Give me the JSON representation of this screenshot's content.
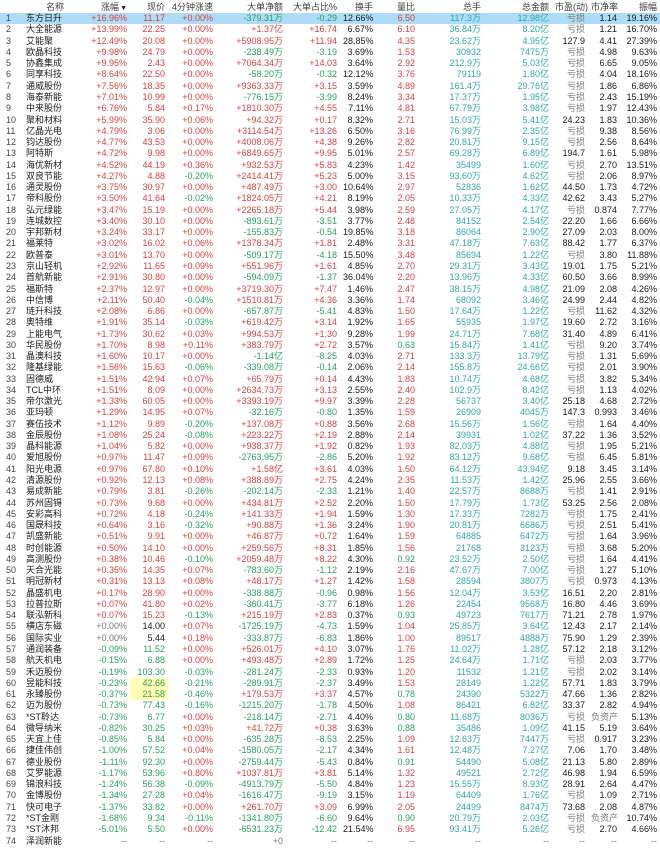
{
  "table": {
    "headers": [
      "名称",
      "涨幅",
      "现价",
      "4分钟涨速",
      "大单净额",
      "大单占比%",
      "换手",
      "量比",
      "总手",
      "总金额",
      "市盈(动)",
      "市净率",
      "振幅"
    ],
    "column_keys": [
      "index",
      "name",
      "change",
      "price",
      "speed",
      "net_amount",
      "net_ratio",
      "turnover",
      "volume_ratio",
      "total_volume",
      "total_amount",
      "pe",
      "pb",
      "amplitude"
    ],
    "sort_column": "涨幅",
    "sort_glyph": "▼",
    "selected_row": 1,
    "yellow_price_rows": [
      60,
      61
    ],
    "rows": [
      [
        "1",
        "东方日升",
        "+16.96%",
        "11.17",
        "+0.00%",
        "-379.31万",
        "-0.29",
        "12.66%",
        "6.50",
        "117.3万",
        "12.98亿",
        "亏损",
        "1.14",
        "19.16%"
      ],
      [
        "2",
        "大全能源",
        "+13.99%",
        "22.25",
        "+0.00%",
        "+1.37亿",
        "+16.74",
        "6.67%",
        "6.10",
        "36.84万",
        "8.20亿",
        "亏损",
        "1.21",
        "16.70%"
      ],
      [
        "3",
        "艾能聚",
        "+12.49%",
        "20.08",
        "+0.00%",
        "+5908.95万",
        "+11.94",
        "28.85%",
        "4.35",
        "23.62万",
        "4.95亿",
        "127.9",
        "4.41",
        "27.39%"
      ],
      [
        "4",
        "欧晶科技",
        "+9.98%",
        "24.79",
        "+0.00%",
        "-238.49万",
        "-3.19",
        "3.69%",
        "1.53",
        "30932",
        "7475万",
        "亏损",
        "4.98",
        "9.63%"
      ],
      [
        "5",
        "协鑫集成",
        "+9.95%",
        "2.43",
        "+0.00%",
        "+7064.34万",
        "+14.03",
        "3.64%",
        "2.92",
        "212.9万",
        "5.03亿",
        "亏损",
        "6.65",
        "9.05%"
      ],
      [
        "6",
        "同享科技",
        "+8.64%",
        "22.50",
        "+0.00%",
        "-58.20万",
        "-0.32",
        "12.12%",
        "3.76",
        "79119",
        "1.80亿",
        "亏损",
        "4.04",
        "18.16%"
      ],
      [
        "7",
        "通威股份",
        "+7.56%",
        "18.35",
        "+0.00%",
        "+9363.33万",
        "+3.15",
        "3.59%",
        "4.89",
        "161.4万",
        "29.76亿",
        "亏损",
        "1.86",
        "6.86%"
      ],
      [
        "8",
        "海泰新能",
        "+7.01%",
        "10.99",
        "+0.00%",
        "-776.15万",
        "-3.99",
        "8.24%",
        "3.34",
        "17.37万",
        "1.95亿",
        "亏损",
        "2.43",
        "15.19%"
      ],
      [
        "9",
        "中来股份",
        "+6.76%",
        "5.84",
        "+0.17%",
        "+1810.30万",
        "+4.55",
        "7.11%",
        "4.81",
        "67.79万",
        "3.98亿",
        "亏损",
        "1.97",
        "12.43%"
      ],
      [
        "10",
        "聚和材料",
        "+5.99%",
        "35.90",
        "+0.06%",
        "+94.32万",
        "+0.17",
        "8.32%",
        "2.71",
        "15.03万",
        "5.41亿",
        "24.23",
        "1.83",
        "10.36%"
      ],
      [
        "11",
        "亿晶光电",
        "+4.79%",
        "3.06",
        "+0.00%",
        "+3114.54万",
        "+13.26",
        "6.50%",
        "3.16",
        "76.99万",
        "2.35亿",
        "亏损",
        "9.38",
        "8.56%"
      ],
      [
        "12",
        "钧达股份",
        "+4.77%",
        "43.53",
        "+0.00%",
        "+4008.06万",
        "+4.38",
        "9.26%",
        "2.82",
        "20.81万",
        "9.15亿",
        "亏损",
        "2.56",
        "8.64%"
      ],
      [
        "13",
        "阿特斯",
        "+4.72%",
        "9.98",
        "+0.00%",
        "+6849.65万",
        "+9.95",
        "5.01%",
        "2.57",
        "69.28万",
        "6.89亿",
        "194.7",
        "1.61",
        "5.98%"
      ],
      [
        "14",
        "海优新材",
        "+4.52%",
        "44.19",
        "+0.36%",
        "+932.53万",
        "+5.83",
        "4.23%",
        "1.42",
        "35499",
        "1.60亿",
        "亏损",
        "2.70",
        "13.51%"
      ],
      [
        "15",
        "双良节能",
        "+4.27%",
        "4.88",
        "-0.20%",
        "+2414.41万",
        "+5.23",
        "5.00%",
        "3.15",
        "93.60万",
        "4.62亿",
        "亏损",
        "2.06",
        "8.97%"
      ],
      [
        "16",
        "通灵股份",
        "+3.75%",
        "30.97",
        "+0.00%",
        "+487.49万",
        "+3.00",
        "10.64%",
        "2.97",
        "52836",
        "1.62亿",
        "44.50",
        "1.73",
        "4.72%"
      ],
      [
        "17",
        "帝科股份",
        "+3.50%",
        "41.64",
        "-0.02%",
        "+1824.05万",
        "+4.21",
        "8.19%",
        "2.05",
        "10.33万",
        "4.33亿",
        "42.62",
        "3.43",
        "5.27%"
      ],
      [
        "18",
        "弘元绿能",
        "+3.47%",
        "15.19",
        "+0.00%",
        "+2265.18万",
        "+5.44",
        "3.98%",
        "2.59",
        "27.05万",
        "4.17亿",
        "亏损",
        "0.874",
        "7.77%"
      ],
      [
        "19",
        "连城数控",
        "+3.40%",
        "30.10",
        "+0.00%",
        "-893.61万",
        "-3.51",
        "3.77%",
        "2.48",
        "84152",
        "2.54亿",
        "22.20",
        "1.66",
        "6.66%"
      ],
      [
        "20",
        "宇邦新材",
        "+3.24%",
        "33.17",
        "+0.00%",
        "-155.83万",
        "-0.54",
        "19.85%",
        "3.18",
        "86064",
        "2.90亿",
        "27.09",
        "2.03",
        "8.00%"
      ],
      [
        "21",
        "福莱特",
        "+3.02%",
        "16.02",
        "+0.06%",
        "+1378.34万",
        "+1.81",
        "2.48%",
        "3.31",
        "47.18万",
        "7.63亿",
        "88.42",
        "1.77",
        "6.37%"
      ],
      [
        "22",
        "欧普泰",
        "+3.01%",
        "13.70",
        "+0.00%",
        "-509.17万",
        "-4.18",
        "15.50%",
        "3.48",
        "85694",
        "1.22亿",
        "亏损",
        "3.80",
        "11.88%"
      ],
      [
        "23",
        "京山轻机",
        "+2.92%",
        "11.65",
        "+0.09%",
        "+551.96万",
        "+1.61",
        "4.85%",
        "2.70",
        "29.31万",
        "3.43亿",
        "19.01",
        "1.75",
        "5.21%"
      ],
      [
        "24",
        "首航新能",
        "+2.91%",
        "30.80",
        "+0.00%",
        "-594.09万",
        "-1.37",
        "36.04%",
        "2.20",
        "13.96万",
        "4.33亿",
        "60.50",
        "3.66",
        "8.99%"
      ],
      [
        "25",
        "福斯特",
        "+2.37%",
        "12.97",
        "+0.00%",
        "+3719.30万",
        "+7.47",
        "1.46%",
        "2.47",
        "38.15万",
        "4.98亿",
        "21.09",
        "2.08",
        "4.26%"
      ],
      [
        "26",
        "中信博",
        "+2.11%",
        "50.40",
        "-0.04%",
        "+1510.81万",
        "+4.36",
        "3.36%",
        "1.74",
        "68092",
        "3.46亿",
        "24.99",
        "2.44",
        "4.82%"
      ],
      [
        "27",
        "琏升科技",
        "+2.08%",
        "6.86",
        "+0.00%",
        "-657.87万",
        "-5.41",
        "4.83%",
        "1.50",
        "17.64万",
        "1.22亿",
        "亏损",
        "11.62",
        "4.32%"
      ],
      [
        "28",
        "奥特维",
        "+1.91%",
        "35.14",
        "-0.03%",
        "+619.42万",
        "+3.14",
        "1.92%",
        "1.65",
        "55935",
        "1.97亿",
        "19.60",
        "2.72",
        "3.16%"
      ],
      [
        "29",
        "上能电气",
        "+1.73%",
        "30.62",
        "+0.03%",
        "+994.53万",
        "+1.30",
        "9.28%",
        "1.99",
        "24.71万",
        "7.68亿",
        "31.40",
        "4.89",
        "6.41%"
      ],
      [
        "30",
        "华民股份",
        "+1.70%",
        "8.98",
        "+0.11%",
        "+383.79万",
        "+2.72",
        "3.57%",
        "0.63",
        "15.84万",
        "1.41亿",
        "亏损",
        "9.20",
        "3.74%"
      ],
      [
        "31",
        "晶澳科技",
        "+1.60%",
        "10.17",
        "+0.00%",
        "-1.14亿",
        "-8.25",
        "4.03%",
        "2.71",
        "133.3万",
        "13.79亿",
        "亏损",
        "1.31",
        "5.69%"
      ],
      [
        "32",
        "隆基绿能",
        "+1.56%",
        "15.63",
        "-0.06%",
        "-339.08万",
        "-0.14",
        "2.06%",
        "2.14",
        "155.8万",
        "24.66亿",
        "亏损",
        "2.01",
        "3.90%"
      ],
      [
        "33",
        "固德威",
        "+1.51%",
        "42.94",
        "+0.07%",
        "+65.79万",
        "+0.14",
        "4.43%",
        "1.83",
        "10.74万",
        "4.68亿",
        "亏损",
        "3.82",
        "5.34%"
      ],
      [
        "34",
        "TCL中环",
        "+1.51%",
        "8.09",
        "+0.00%",
        "+2634.73万",
        "+3.13",
        "2.55%",
        "2.40",
        "102.9万",
        "8.42亿",
        "亏损",
        "1.13",
        "4.02%"
      ],
      [
        "35",
        "帝尔激光",
        "+1.33%",
        "60.05",
        "+0.00%",
        "+3393.19万",
        "+9.97",
        "3.39%",
        "2.28",
        "56737",
        "3.40亿",
        "25.18",
        "4.68",
        "2.72%"
      ],
      [
        "36",
        "亚玛顿",
        "+1.29%",
        "14.95",
        "+0.07%",
        "-32.16万",
        "-0.80",
        "1.35%",
        "1.59",
        "26909",
        "4045万",
        "147.3",
        "0.993",
        "3.46%"
      ],
      [
        "37",
        "赛伍技术",
        "+1.12%",
        "9.89",
        "-0.20%",
        "+137.08万",
        "+0.88",
        "3.56%",
        "2.68",
        "15.56万",
        "1.56亿",
        "亏损",
        "1.64",
        "4.40%"
      ],
      [
        "38",
        "金辰股份",
        "+1.08%",
        "25.24",
        "-0.08%",
        "+223.22万",
        "+2.19",
        "2.88%",
        "2.14",
        "39931",
        "1.02亿",
        "37.22",
        "1.36",
        "3.52%"
      ],
      [
        "39",
        "晶科能源",
        "+1.04%",
        "5.82",
        "+0.00%",
        "+938.37万",
        "+1.92",
        "0.82%",
        "1.93",
        "82.03万",
        "4.88亿",
        "亏损",
        "1.95",
        "5.21%"
      ],
      [
        "40",
        "爱旭股份",
        "+0.97%",
        "11.47",
        "+0.09%",
        "-2763.95万",
        "-2.86",
        "5.20%",
        "1.92",
        "83.12万",
        "9.68亿",
        "亏损",
        "6.45",
        "5.81%"
      ],
      [
        "41",
        "阳光电源",
        "+0.97%",
        "67.80",
        "+0.10%",
        "+1.58亿",
        "+3.61",
        "4.03%",
        "1.50",
        "64.12万",
        "43.94亿",
        "9.18",
        "3.45",
        "3.14%"
      ],
      [
        "42",
        "清源股份",
        "+0.92%",
        "12.13",
        "+0.08%",
        "+388.89万",
        "+2.75",
        "4.24%",
        "2.35",
        "11.53万",
        "1.42亿",
        "25.96",
        "2.55",
        "3.66%"
      ],
      [
        "43",
        "易成新能",
        "+0.79%",
        "3.81",
        "-0.26%",
        "-202.14万",
        "-2.33",
        "1.21%",
        "1.40",
        "22.57万",
        "8688万",
        "亏损",
        "1.41",
        "2.91%"
      ],
      [
        "44",
        "苏州固锝",
        "+0.73%",
        "9.68",
        "+0.00%",
        "+434.81万",
        "+2.52",
        "2.20%",
        "1.50",
        "17.79万",
        "1.73亿",
        "53.25",
        "2.56",
        "2.08%"
      ],
      [
        "45",
        "安彩高科",
        "+0.72%",
        "4.18",
        "-0.24%",
        "+141.33万",
        "+1.94",
        "1.59%",
        "1.30",
        "17.33万",
        "7282万",
        "亏损",
        "1.75",
        "2.41%"
      ],
      [
        "46",
        "国晟科技",
        "+0.64%",
        "3.16",
        "-0.32%",
        "+90.88万",
        "+1.36",
        "3.24%",
        "1.90",
        "20.81万",
        "6686万",
        "亏损",
        "2.51",
        "5.41%"
      ],
      [
        "47",
        "凯盛新能",
        "+0.51%",
        "9.91",
        "+0.00%",
        "+46.87万",
        "+0.72",
        "1.64%",
        "1.59",
        "64885",
        "6472万",
        "亏损",
        "1.64",
        "3.96%"
      ],
      [
        "48",
        "时创能源",
        "+0.50%",
        "14.10",
        "+0.00%",
        "+259.56万",
        "+8.31",
        "1.85%",
        "1.56",
        "21768",
        "3123万",
        "亏损",
        "3.68",
        "5.20%"
      ],
      [
        "49",
        "高测股份",
        "+0.38%",
        "10.46",
        "-0.10%",
        "+2059.48万",
        "+8.22",
        "4.30%",
        "0.92",
        "23.52万",
        "2.50亿",
        "亏损",
        "1.64",
        "4.41%"
      ],
      [
        "50",
        "天合光能",
        "+0.35%",
        "14.35",
        "+0.07%",
        "-783.60万",
        "-1.12",
        "2.19%",
        "2.16",
        "47.67万",
        "7.00亿",
        "亏损",
        "1.27",
        "5.10%"
      ],
      [
        "51",
        "明冠新材",
        "+0.31%",
        "13.13",
        "+0.08%",
        "+48.17万",
        "+1.27",
        "1.42%",
        "1.58",
        "28594",
        "3807万",
        "亏损",
        "0.973",
        "4.13%"
      ],
      [
        "52",
        "晶盛机电",
        "+0.17%",
        "28.90",
        "+0.00%",
        "-338.88万",
        "-0.96",
        "0.98%",
        "1.56",
        "12.04万",
        "3.53亿",
        "16.51",
        "2.20",
        "2.81%"
      ],
      [
        "53",
        "拉普拉斯",
        "+0.07%",
        "41.80",
        "+0.02%",
        "-360.41万",
        "-3.77",
        "6.18%",
        "1.26",
        "22454",
        "9568万",
        "16.80",
        "4.46",
        "3.69%"
      ],
      [
        "54",
        "联泓新科",
        "+0.07%",
        "15.23",
        "-0.13%",
        "+215.19万",
        "+2.83",
        "0.37%",
        "0.93",
        "49723",
        "7617万",
        "71.21",
        "2.78",
        "1.97%"
      ],
      [
        "55",
        "横店东磁",
        "+0.00%",
        "14.00",
        "+0.07%",
        "-1725.19万",
        "-4.73",
        "1.59%",
        "1.04",
        "25.85万",
        "3.64亿",
        "12.43",
        "2.17",
        "2.14%"
      ],
      [
        "56",
        "国际实业",
        "+0.00%",
        "5.44",
        "+0.18%",
        "-333.87万",
        "-6.83",
        "1.86%",
        "1.00",
        "89517",
        "4888万",
        "75.90",
        "1.29",
        "2.39%"
      ],
      [
        "57",
        "通润装备",
        "-0.09%",
        "11.52",
        "+0.00%",
        "+526.01万",
        "+4.10",
        "3.07%",
        "1.76",
        "11.02万",
        "1.28亿",
        "57.12",
        "2.18",
        "3.12%"
      ],
      [
        "58",
        "航天机电",
        "-0.15%",
        "6.88",
        "+0.00%",
        "+493.48万",
        "+2.89",
        "1.72%",
        "1.25",
        "24.64万",
        "1.71亿",
        "亏损",
        "2.03",
        "3.77%"
      ],
      [
        "59",
        "禾迈股份",
        "-0.19%",
        "103.30",
        "-0.03%",
        "-281.24万",
        "-2.33",
        "0.93%",
        "1.20",
        "11532",
        "1.21亿",
        "亏损",
        "2.02",
        "3.14%"
      ],
      [
        "60",
        "昱能科技",
        "-0.23%",
        "42.66",
        "-0.21%",
        "-289.91万",
        "-2.37",
        "3.49%",
        "1.53",
        "28149",
        "1.22亿",
        "57.71",
        "1.83",
        "3.79%"
      ],
      [
        "61",
        "永臻股份",
        "-0.37%",
        "21.58",
        "-0.46%",
        "+179.53万",
        "+3.37",
        "4.57%",
        "0.78",
        "24390",
        "5322万",
        "47.66",
        "1.36",
        "2.82%"
      ],
      [
        "62",
        "迈为股份",
        "-0.73%",
        "77.43",
        "-0.16%",
        "-1215.20万",
        "-1.78",
        "4.50%",
        "1.08",
        "86421",
        "6.82亿",
        "33.37",
        "2.82",
        "4.94%"
      ],
      [
        "63",
        "*ST聆达",
        "-0.73%",
        "6.77",
        "+0.00%",
        "-218.14万",
        "-2.71",
        "4.40%",
        "0.80",
        "11.68万",
        "8036万",
        "亏损",
        "负资产",
        "5.13%"
      ],
      [
        "64",
        "微导纳米",
        "-0.82%",
        "30.25",
        "+0.03%",
        "+41.72万",
        "+0.38",
        "3.63%",
        "0.88",
        "35486",
        "1.09亿",
        "41.15",
        "5.19",
        "3.64%"
      ],
      [
        "65",
        "天宜上佳",
        "-0.85%",
        "5.84",
        "+0.00%",
        "-635.28万",
        "-8.53",
        "2.25%",
        "1.09",
        "12.63万",
        "7447万",
        "亏损",
        "0.917",
        "3.23%"
      ],
      [
        "66",
        "捷佳伟创",
        "-1.00%",
        "57.52",
        "+0.04%",
        "-1580.05万",
        "-2.17",
        "4.34%",
        "1.61",
        "12.48万",
        "7.27亿",
        "7.06",
        "1.70",
        "3.48%"
      ],
      [
        "67",
        "德业股份",
        "-1.11%",
        "92.30",
        "+0.00%",
        "-2759.44万",
        "-5.43",
        "0.84%",
        "0.91",
        "54490",
        "5.08亿",
        "21.13",
        "5.80",
        "2.89%"
      ],
      [
        "68",
        "艾罗能源",
        "-1.17%",
        "53.96",
        "+0.80%",
        "+1037.81万",
        "+3.81",
        "5.14%",
        "1.32",
        "49521",
        "2.72亿",
        "46.98",
        "1.94",
        "6.59%"
      ],
      [
        "69",
        "锦浪科技",
        "-1.24%",
        "56.38",
        "-0.09%",
        "-4913.79万",
        "-5.50",
        "4.84%",
        "1.23",
        "15.55万",
        "8.93亿",
        "28.91",
        "2.64",
        "4.47%"
      ],
      [
        "70",
        "金博股份",
        "-1.34%",
        "27.28",
        "+0.04%",
        "-1616.47万",
        "-9.19",
        "3.15%",
        "1.19",
        "64409",
        "1.76亿",
        "亏损",
        "1.09",
        "2.71%"
      ],
      [
        "71",
        "快可电子",
        "-1.37%",
        "33.82",
        "+0.00%",
        "+261.70万",
        "+3.09",
        "6.99%",
        "2.05",
        "24499",
        "8474万",
        "73.68",
        "2.08",
        "4.87%"
      ],
      [
        "72",
        "*ST金刚",
        "-1.68%",
        "9.34",
        "-0.11%",
        "-1341.80万",
        "-6.60",
        "9.64%",
        "0.90",
        "20.79万",
        "2.03亿",
        "亏损",
        "负资产",
        "10.74%"
      ],
      [
        "73",
        "*ST沐邦",
        "-5.01%",
        "5.50",
        "+0.00%",
        "-6531.23万",
        "-12.42",
        "21.54%",
        "6.95",
        "93.41万",
        "5.26亿",
        "亏损",
        "2.70",
        "4.66%"
      ],
      [
        "74",
        "泽润新能",
        "--",
        "--",
        "--",
        "+0",
        "--",
        "--",
        "--",
        "--",
        "--",
        "--",
        "--",
        "--"
      ]
    ]
  },
  "colors": {
    "up": "#e03e3e",
    "down": "#26a35e",
    "volume": "#2fa8a8",
    "neutral_gray": "#777777",
    "index_gray": "#444444",
    "text": "#1a1a1a",
    "selected_row_bg": "#addcf6",
    "price_highlight_bg": "#ffffb3"
  }
}
